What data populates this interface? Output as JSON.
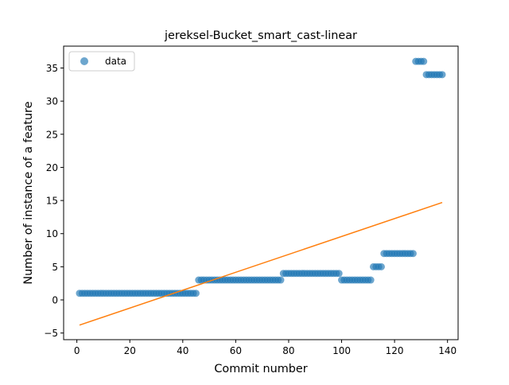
{
  "chart_data": {
    "type": "scatter",
    "title": "jereksel-Bucket_smart_cast-linear",
    "xlabel": "Commit number",
    "ylabel": "Number of instance of a feature",
    "xlim": [
      -5,
      144
    ],
    "ylim": [
      -6,
      38.3
    ],
    "xticks": [
      0,
      20,
      40,
      60,
      80,
      100,
      120,
      140
    ],
    "yticks": [
      -5,
      0,
      5,
      10,
      15,
      20,
      25,
      30,
      35
    ],
    "grid": false,
    "legend_placement": "top-left",
    "series": [
      {
        "name": "data",
        "kind": "scatter",
        "color": "#1f77b4",
        "segments": [
          {
            "x_start": 1,
            "x_end": 45,
            "y": 1
          },
          {
            "x_start": 46,
            "x_end": 77,
            "y": 3
          },
          {
            "x_start": 78,
            "x_end": 99,
            "y": 4
          },
          {
            "x_start": 100,
            "x_end": 111,
            "y": 3
          },
          {
            "x_start": 112,
            "x_end": 115,
            "y": 5
          },
          {
            "x_start": 116,
            "x_end": 127,
            "y": 7
          },
          {
            "x_start": 128,
            "x_end": 131,
            "y": 36
          },
          {
            "x_start": 132,
            "x_end": 138,
            "y": 34
          }
        ]
      },
      {
        "kind": "line",
        "color": "#ff7f0e",
        "x": [
          1,
          138
        ],
        "y": [
          -3.8,
          14.7
        ]
      }
    ]
  }
}
